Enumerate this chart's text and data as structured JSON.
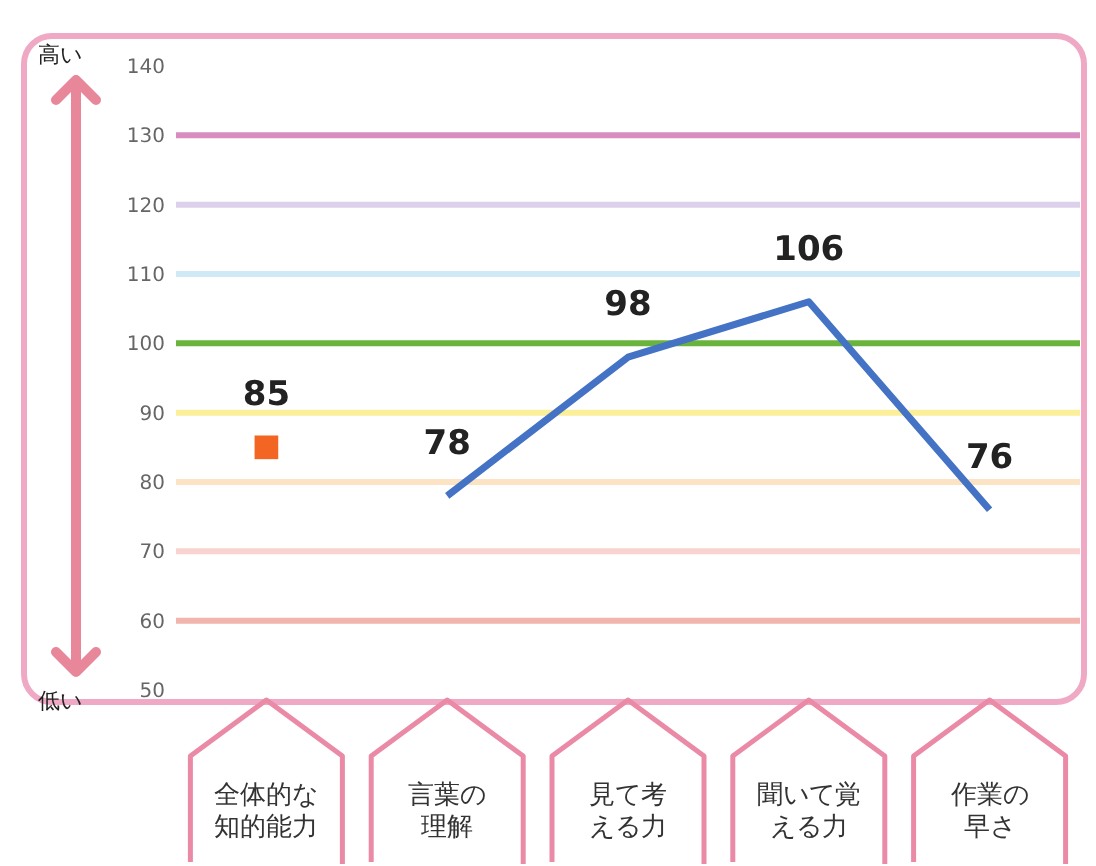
{
  "chart_data": {
    "type": "line",
    "categories": [
      "全体的な知的能力",
      "言葉の理解",
      "見て考える力",
      "聞いて覚える力",
      "作業の早さ"
    ],
    "series": [
      {
        "type": "scatter",
        "marker": "square",
        "color": "#f26522",
        "values": [
          85,
          null,
          null,
          null,
          null
        ]
      },
      {
        "marker": "none",
        "color": "#4472c4",
        "values": [
          null,
          78,
          98,
          106,
          76
        ]
      }
    ],
    "ylim": [
      50,
      140
    ],
    "yticks": [
      50,
      60,
      70,
      80,
      90,
      100,
      110,
      120,
      130,
      140
    ],
    "grid": false,
    "data_labels": true,
    "ref_lines": [
      {
        "axis": "y",
        "value": 130,
        "color": "#d98cc0"
      },
      {
        "axis": "y",
        "value": 120,
        "color": "#ddd0ea"
      },
      {
        "axis": "y",
        "value": 110,
        "color": "#cfe9f7"
      },
      {
        "axis": "y",
        "value": 100,
        "color": "#6ab43e"
      },
      {
        "axis": "y",
        "value": 90,
        "color": "#fbef9a"
      },
      {
        "axis": "y",
        "value": 80,
        "color": "#fbe3c4"
      },
      {
        "axis": "y",
        "value": 70,
        "color": "#f8d3cf"
      },
      {
        "axis": "y",
        "value": 60,
        "color": "#f1b5ae"
      }
    ],
    "annotations": [
      "高い",
      "低い"
    ]
  }
}
